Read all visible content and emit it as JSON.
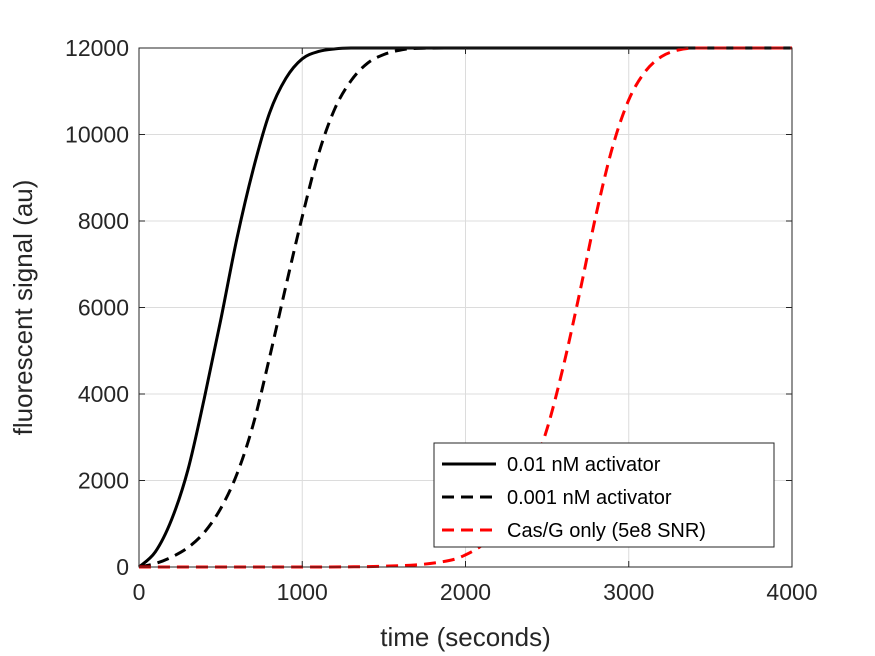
{
  "chart_data": {
    "type": "line",
    "title": "",
    "xlabel": "time (seconds)",
    "ylabel": "fluorescent signal (au)",
    "xlim": [
      0,
      4000
    ],
    "ylim": [
      0,
      12000
    ],
    "xticks": [
      0,
      1000,
      2000,
      3000,
      4000
    ],
    "yticks": [
      0,
      2000,
      4000,
      6000,
      8000,
      10000,
      12000
    ],
    "xtick_labels": [
      "0",
      "1000",
      "2000",
      "3000",
      "4000"
    ],
    "ytick_labels": [
      "0",
      "2000",
      "4000",
      "6000",
      "8000",
      "10000",
      "12000"
    ],
    "grid": true,
    "legend_position": "bottom-right",
    "series": [
      {
        "name": "0.01 nM activator",
        "color": "#000000",
        "dash": "solid",
        "x": [
          0,
          100,
          200,
          300,
          400,
          500,
          600,
          700,
          800,
          900,
          1000,
          1100,
          1200,
          1300,
          1500,
          2000,
          3000,
          4000
        ],
        "y": [
          0,
          350,
          1100,
          2250,
          3900,
          5700,
          7600,
          9200,
          10500,
          11300,
          11750,
          11920,
          11980,
          12000,
          12000,
          12000,
          12000,
          12000
        ]
      },
      {
        "name": "0.001 nM activator",
        "color": "#000000",
        "dash": "dashed",
        "x": [
          0,
          100,
          200,
          300,
          400,
          500,
          600,
          700,
          800,
          900,
          1000,
          1100,
          1200,
          1300,
          1400,
          1500,
          1600,
          1700,
          2000,
          3000,
          4000
        ],
        "y": [
          0,
          80,
          230,
          450,
          800,
          1350,
          2150,
          3300,
          4850,
          6500,
          8100,
          9550,
          10600,
          11250,
          11650,
          11850,
          11950,
          11990,
          12000,
          12000,
          12000
        ]
      },
      {
        "name": "Cas/G only (5e8 SNR)",
        "color": "#ff0000",
        "dash": "dashed",
        "x": [
          0,
          1000,
          1400,
          1700,
          1900,
          2000,
          2100,
          2200,
          2300,
          2400,
          2500,
          2600,
          2700,
          2800,
          2900,
          3000,
          3100,
          3200,
          3300,
          3400,
          3600,
          4000
        ],
        "y": [
          0,
          0,
          10,
          50,
          150,
          280,
          500,
          850,
          1400,
          2150,
          3200,
          4650,
          6350,
          8150,
          9700,
          10800,
          11450,
          11800,
          11950,
          12000,
          12000,
          12000
        ]
      }
    ]
  }
}
